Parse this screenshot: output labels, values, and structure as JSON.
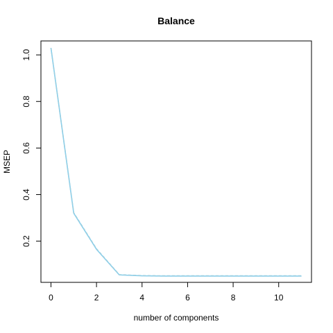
{
  "chart_data": {
    "type": "line",
    "title": "Balance",
    "xlabel": "number of components",
    "ylabel": "MSEP",
    "xlim": [
      -0.44,
      11.44
    ],
    "ylim": [
      0.023,
      1.06
    ],
    "x_ticks": [
      0,
      2,
      4,
      6,
      8,
      10
    ],
    "y_ticks": [
      0.2,
      0.4,
      0.6,
      0.8,
      1.0
    ],
    "y_tick_labels": [
      "0.2",
      "0.4",
      "0.6",
      "0.8",
      "1.0"
    ],
    "grid": false,
    "legend": "none",
    "series": [
      {
        "color": "#87CEEB",
        "x": [
          0,
          1,
          2,
          3,
          4,
          5,
          6,
          7,
          8,
          9,
          10,
          11
        ],
        "y": [
          1.03,
          0.32,
          0.165,
          0.055,
          0.051,
          0.05,
          0.05,
          0.05,
          0.05,
          0.05,
          0.05,
          0.05
        ]
      },
      {
        "color": "#9ccfe0",
        "dashed": true,
        "x": [
          0,
          1,
          2,
          3,
          4,
          5,
          6,
          7,
          8,
          9,
          10,
          11
        ],
        "y": [
          1.03,
          0.322,
          0.167,
          0.056,
          0.052,
          0.051,
          0.051,
          0.051,
          0.051,
          0.051,
          0.051,
          0.051
        ]
      }
    ]
  }
}
